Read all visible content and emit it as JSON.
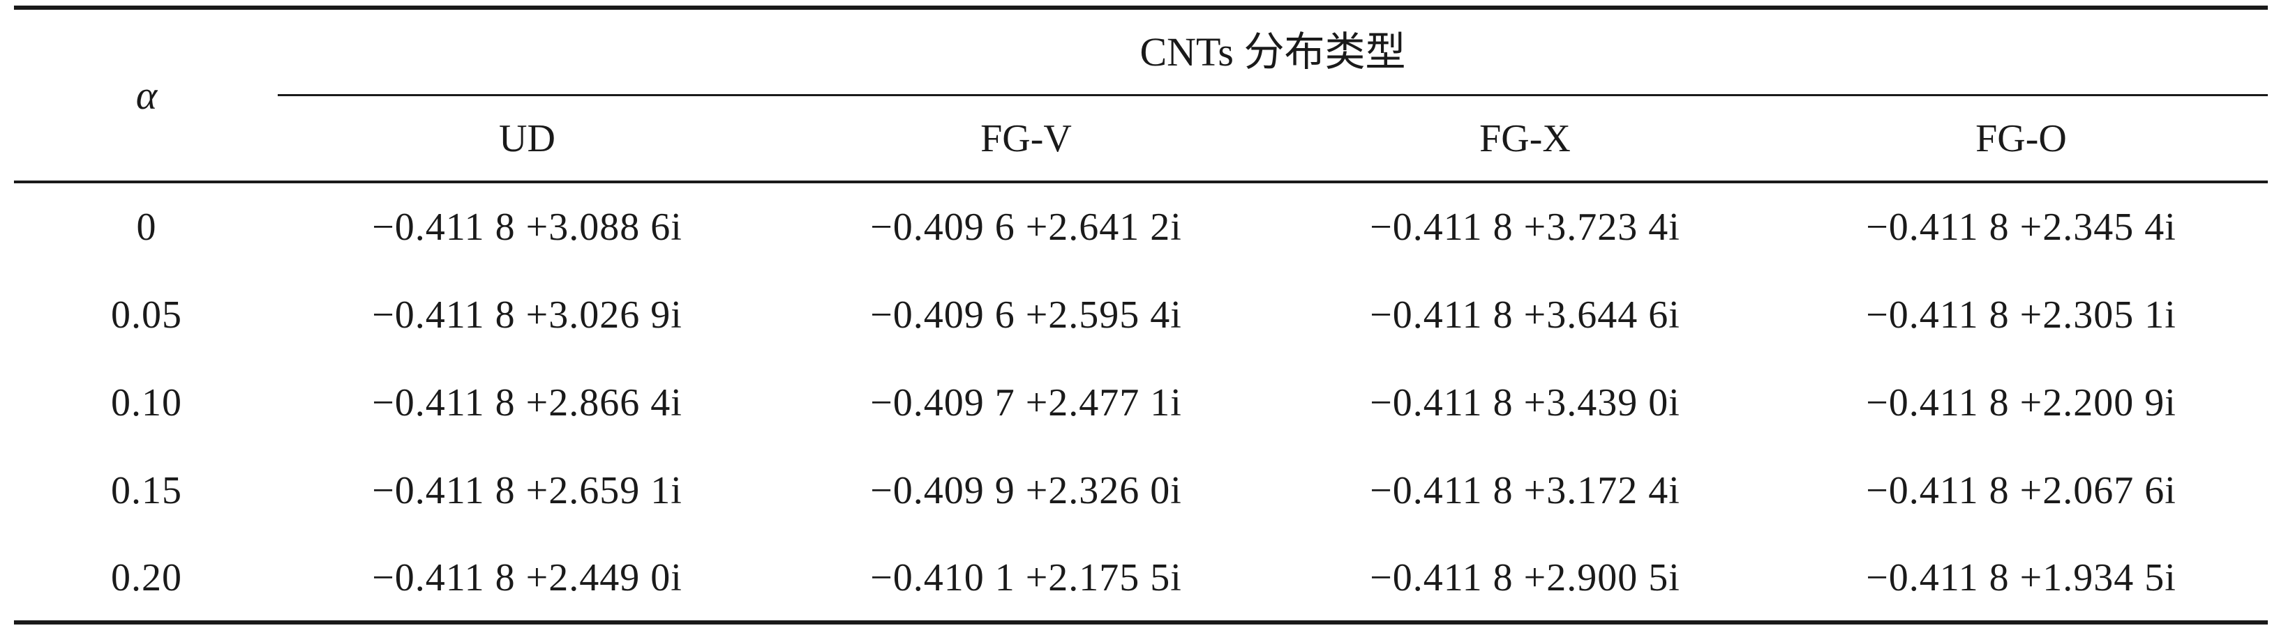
{
  "table": {
    "row_header_label": "α",
    "group_header": "CNTs 分布类型",
    "columns": [
      "UD",
      "FG-V",
      "FG-X",
      "FG-O"
    ],
    "rows": [
      {
        "alpha": "0",
        "values": [
          "−0.411 8 +3.088 6i",
          "−0.409 6 +2.641 2i",
          "−0.411 8 +3.723 4i",
          "−0.411 8 +2.345 4i"
        ]
      },
      {
        "alpha": "0.05",
        "values": [
          "−0.411 8 +3.026 9i",
          "−0.409 6 +2.595 4i",
          "−0.411 8 +3.644 6i",
          "−0.411 8 +2.305 1i"
        ]
      },
      {
        "alpha": "0.10",
        "values": [
          "−0.411 8 +2.866 4i",
          "−0.409 7 +2.477 1i",
          "−0.411 8 +3.439 0i",
          "−0.411 8 +2.200 9i"
        ]
      },
      {
        "alpha": "0.15",
        "values": [
          "−0.411 8 +2.659 1i",
          "−0.409 9 +2.326 0i",
          "−0.411 8 +3.172 4i",
          "−0.411 8 +2.067 6i"
        ]
      },
      {
        "alpha": "0.20",
        "values": [
          "−0.411 8 +2.449 0i",
          "−0.410 1 +2.175 5i",
          "−0.411 8 +2.900 5i",
          "−0.411 8 +1.934 5i"
        ]
      }
    ]
  }
}
